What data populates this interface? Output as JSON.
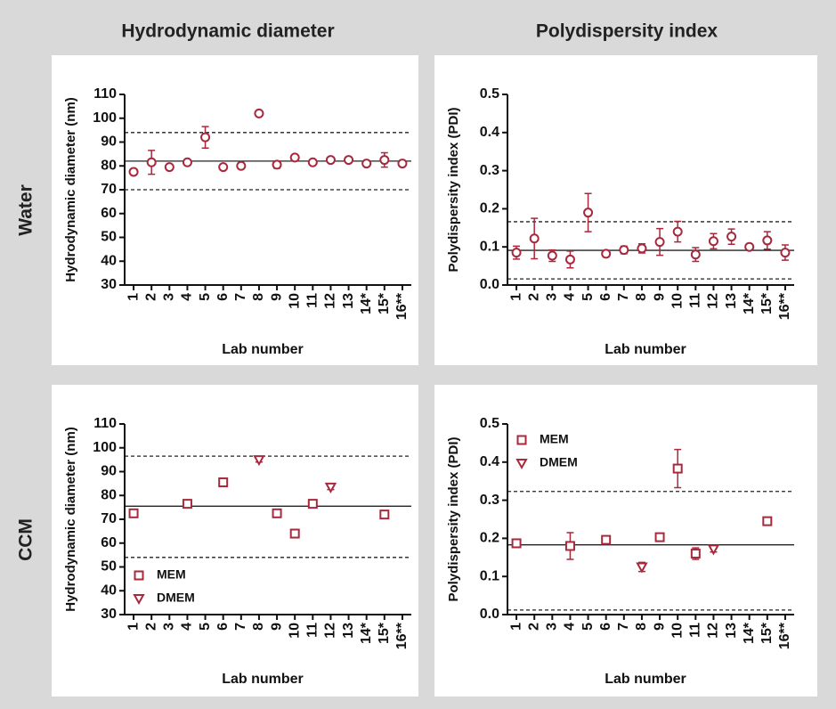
{
  "column_headers": [
    "Hydrodynamic diameter",
    "Polydispersity index"
  ],
  "row_headers": [
    "Water",
    "CCM"
  ],
  "chart_data": [
    {
      "type": "errorbar",
      "ylabel": "Hydrodynamic diameter (nm)",
      "xlabel": "Lab number",
      "categories": [
        "1",
        "2",
        "3",
        "4",
        "5",
        "6",
        "7",
        "8",
        "9",
        "10",
        "11",
        "12",
        "13",
        "14*",
        "15*",
        "16**"
      ],
      "values": [
        77.5,
        81.5,
        79.5,
        81.5,
        92,
        79.5,
        80,
        102,
        80.5,
        83.5,
        81.5,
        82.5,
        82.5,
        81,
        82.5,
        81
      ],
      "errors": [
        0.8,
        5,
        0.8,
        0.8,
        4.5,
        0.8,
        0.8,
        0.8,
        1.5,
        0.8,
        0.8,
        0.8,
        0.8,
        0.8,
        3,
        0.8
      ],
      "color": "#a8283c",
      "marker": "circle",
      "ylim": [
        30,
        110
      ],
      "yticks": [
        30,
        40,
        50,
        60,
        70,
        80,
        90,
        100,
        110
      ],
      "reference_lines": [
        {
          "value": 82,
          "style": "solid"
        },
        {
          "value": 94,
          "style": "dashed"
        },
        {
          "value": 70,
          "style": "dashed"
        }
      ]
    },
    {
      "type": "errorbar",
      "ylabel": "Polydispersity index (PDI)",
      "xlabel": "Lab number",
      "categories": [
        "1",
        "2",
        "3",
        "4",
        "5",
        "6",
        "7",
        "8",
        "9",
        "10",
        "11",
        "12",
        "13",
        "14*",
        "15*",
        "16**"
      ],
      "values": [
        0.085,
        0.122,
        0.077,
        0.067,
        0.19,
        0.082,
        0.092,
        0.096,
        0.113,
        0.14,
        0.08,
        0.115,
        0.127,
        0.1,
        0.117,
        0.085
      ],
      "errors": [
        0.017,
        0.053,
        0.015,
        0.022,
        0.05,
        0.008,
        0.01,
        0.012,
        0.035,
        0.027,
        0.018,
        0.02,
        0.02,
        0.005,
        0.023,
        0.02
      ],
      "color": "#a8283c",
      "marker": "circle",
      "ylim": [
        0,
        0.5
      ],
      "yticks": [
        {
          "value": 0,
          "label": "0.0"
        },
        0.1,
        0.2,
        0.3,
        0.4,
        0.5
      ],
      "reference_lines": [
        {
          "value": 0.091,
          "style": "solid"
        },
        {
          "value": 0.166,
          "style": "dashed"
        },
        {
          "value": 0.016,
          "style": "dashed"
        }
      ]
    },
    {
      "type": "errorbar",
      "ylabel": "Hydrodynamic diameter (nm)",
      "xlabel": "Lab number",
      "categories": [
        "1",
        "2",
        "3",
        "4",
        "5",
        "6",
        "7",
        "8",
        "9",
        "10",
        "11",
        "12",
        "13",
        "14*",
        "15*",
        "16**"
      ],
      "series": [
        {
          "name": "MEM",
          "color": "#a8283c",
          "marker": "square",
          "values": [
            72.5,
            null,
            null,
            76.5,
            null,
            85.5,
            null,
            null,
            72.5,
            64,
            76.5,
            null,
            null,
            null,
            72,
            null
          ],
          "errors": [
            0.8,
            null,
            null,
            0.8,
            null,
            0.8,
            null,
            null,
            0.8,
            0.8,
            0.8,
            null,
            null,
            null,
            0.8,
            null
          ]
        },
        {
          "name": "DMEM",
          "color": "#a8283c",
          "marker": "triangle",
          "values": [
            null,
            null,
            null,
            null,
            null,
            null,
            null,
            95,
            null,
            null,
            null,
            83.5,
            null,
            null,
            null,
            null
          ],
          "errors": [
            null,
            null,
            null,
            null,
            null,
            null,
            null,
            1,
            null,
            null,
            null,
            1,
            null,
            null,
            null,
            null
          ]
        }
      ],
      "legend": "lower left",
      "ylim": [
        30,
        110
      ],
      "yticks": [
        30,
        40,
        50,
        60,
        70,
        80,
        90,
        100,
        110
      ],
      "reference_lines": [
        {
          "value": 75.5,
          "style": "solid"
        },
        {
          "value": 96.5,
          "style": "dashed"
        },
        {
          "value": 54,
          "style": "dashed"
        }
      ]
    },
    {
      "type": "errorbar",
      "ylabel": "Polydispersity index (PDI)",
      "xlabel": "Lab number",
      "categories": [
        "1",
        "2",
        "3",
        "4",
        "5",
        "6",
        "7",
        "8",
        "9",
        "10",
        "11",
        "12",
        "13",
        "14*",
        "15*",
        "16**"
      ],
      "series": [
        {
          "name": "MEM",
          "color": "#a8283c",
          "marker": "square",
          "values": [
            0.187,
            null,
            null,
            0.18,
            null,
            0.196,
            null,
            null,
            0.203,
            0.383,
            0.16,
            null,
            null,
            null,
            0.245,
            null
          ],
          "errors": [
            0.005,
            null,
            null,
            0.035,
            null,
            0.007,
            null,
            null,
            0.007,
            0.05,
            0.015,
            null,
            null,
            null,
            0.008,
            null
          ]
        },
        {
          "name": "DMEM",
          "color": "#a8283c",
          "marker": "triangle",
          "values": [
            null,
            null,
            null,
            null,
            null,
            null,
            null,
            0.125,
            null,
            null,
            null,
            0.172,
            null,
            null,
            null,
            null
          ],
          "errors": [
            null,
            null,
            null,
            null,
            null,
            null,
            null,
            0.012,
            null,
            null,
            null,
            0.008,
            null,
            null,
            null,
            null
          ]
        }
      ],
      "legend": "upper left",
      "ylim": [
        0,
        0.5
      ],
      "yticks": [
        {
          "value": 0,
          "label": "0.0"
        },
        0.1,
        0.2,
        0.3,
        0.4,
        0.5
      ],
      "reference_lines": [
        {
          "value": 0.183,
          "style": "solid"
        },
        {
          "value": 0.323,
          "style": "dashed"
        },
        {
          "value": 0.012,
          "style": "dashed"
        }
      ]
    }
  ]
}
